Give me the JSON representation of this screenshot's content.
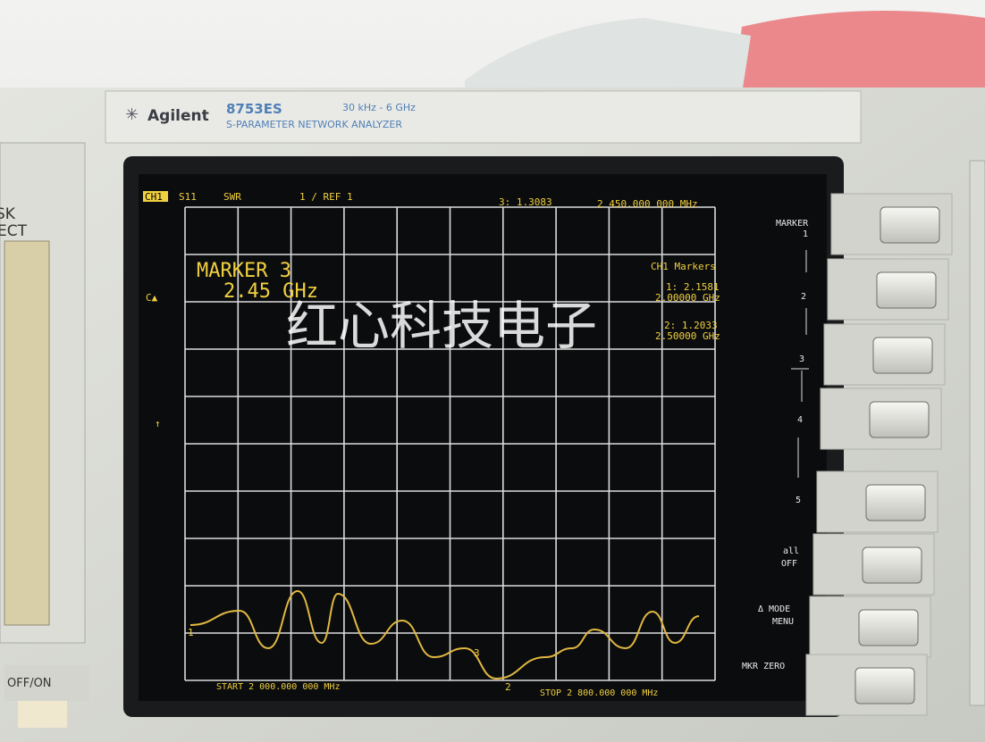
{
  "header": {
    "brand": "Agilent",
    "model": "8753ES",
    "range": "30 kHz - 6 GHz",
    "subtitle": "S-PARAMETER NETWORK ANALYZER"
  },
  "screen": {
    "status": {
      "channel": "CH1",
      "parameter": "S11",
      "format": "SWR",
      "scale": "1 / REF 1",
      "marker_value": "3: 1.3083",
      "marker_freq": "2 450.000 000 MHz"
    },
    "marker_box": {
      "title": "MARKER 3",
      "freq": "2.45 GHz"
    },
    "marker_list": {
      "title": "CH1 Markers",
      "items": [
        {
          "value": "1: 2.1581",
          "freq": "2.00000 GHz"
        },
        {
          "value": "2: 1.2033",
          "freq": "2.50000 GHz"
        }
      ]
    },
    "left_flags": {
      "delta": "C▲",
      "arrow": "↑"
    },
    "trace_markers": [
      "1",
      "2",
      "3"
    ],
    "start": "START 2 000.000 000 MHz",
    "stop": "STOP 2 800.000 000 MHz",
    "softkeys": {
      "title": "MARKER",
      "items": [
        "1",
        "2",
        "3",
        "4",
        "5"
      ],
      "all": "all",
      "off": "OFF",
      "mode": "Δ MODE",
      "menu": "MENU",
      "zero": "MKR ZERO"
    }
  },
  "watermark": "红心科技电子",
  "side": {
    "disk1": "SK",
    "disk2": "ECT",
    "power": "OFF/ON"
  }
}
